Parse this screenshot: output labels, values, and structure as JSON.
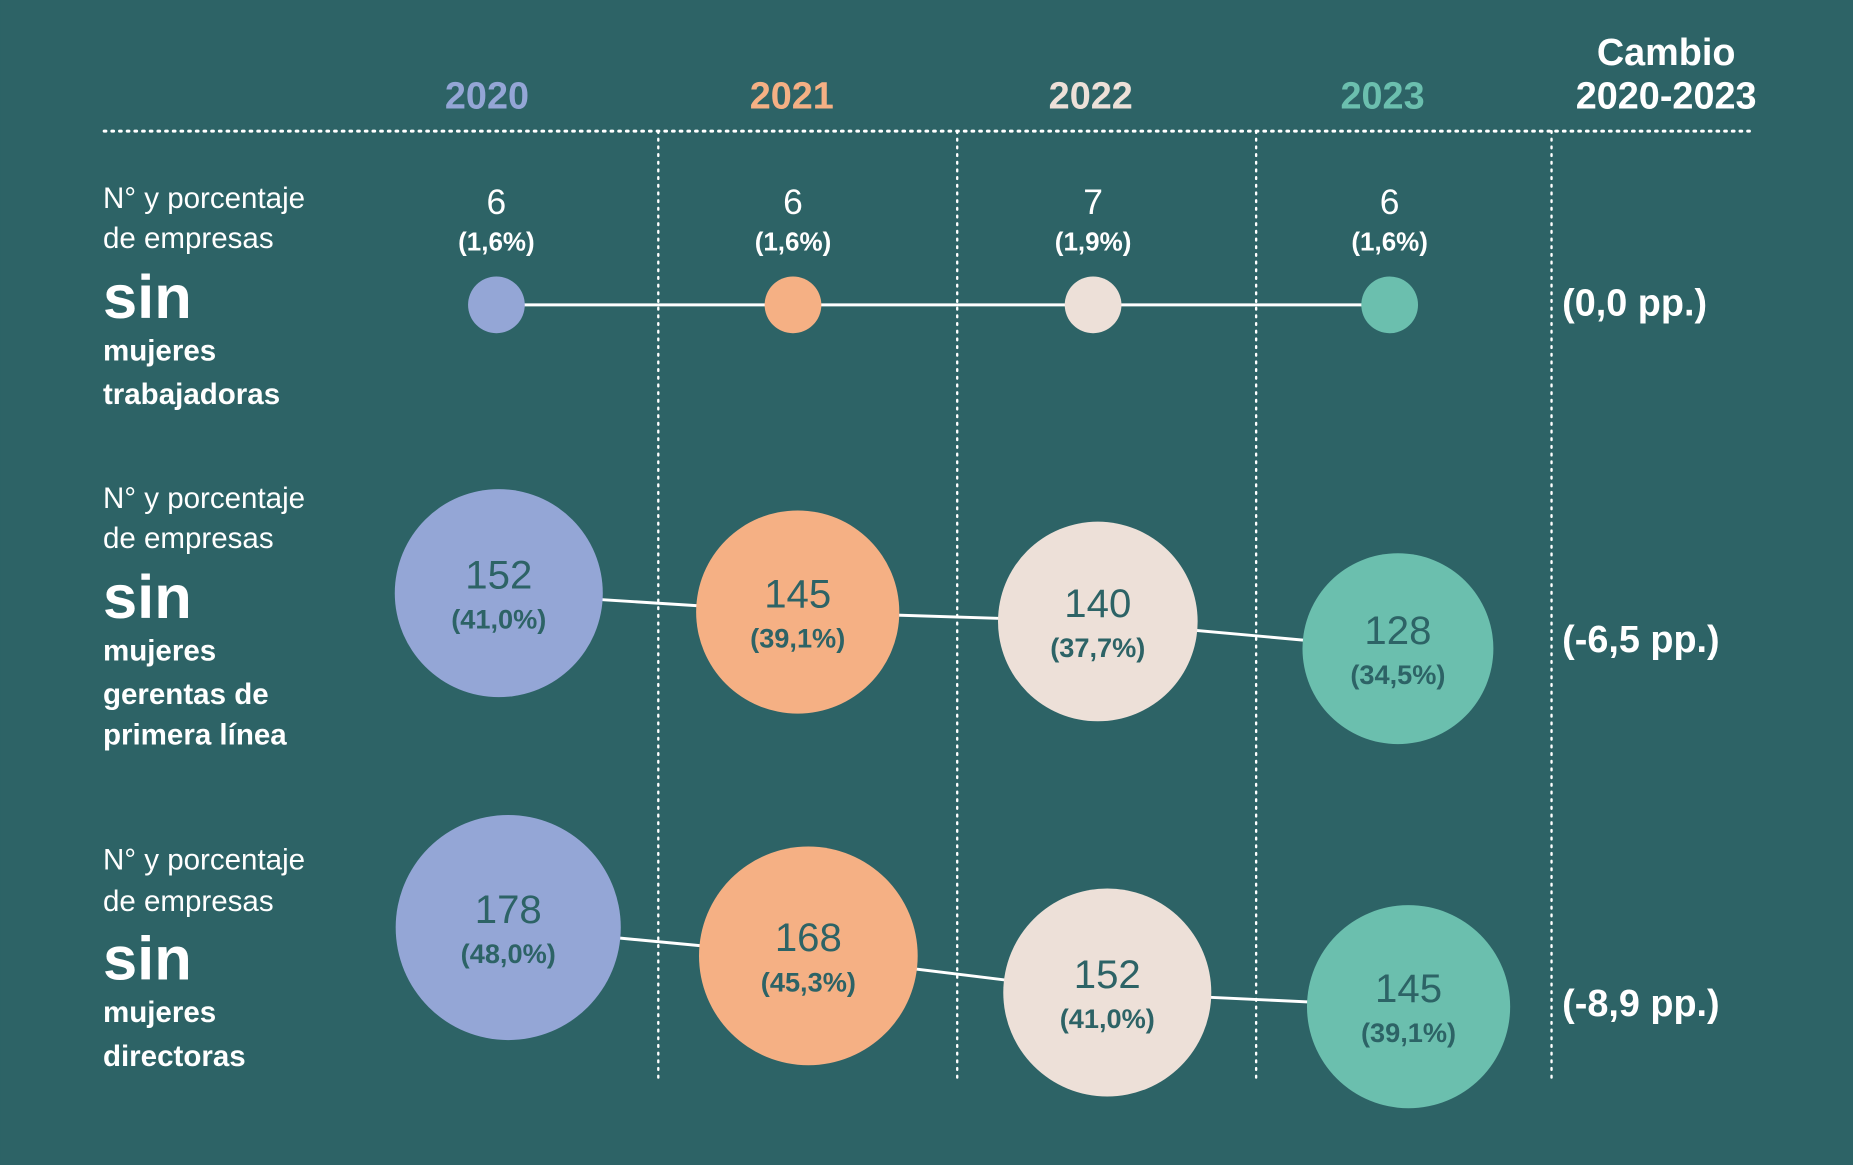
{
  "chart_data": {
    "type": "bubble-timeline",
    "years": [
      "2020",
      "2021",
      "2022",
      "2023"
    ],
    "year_colors": [
      "#94a6d6",
      "#f5b084",
      "#ede0d8",
      "#6bbfae"
    ],
    "background": "#2d6366",
    "change_header": [
      "Cambio",
      "2020-2023"
    ],
    "rows": [
      {
        "label": [
          "N° y porcentaje",
          "de empresas",
          "sin",
          "mujeres",
          "trabajadoras"
        ],
        "values": [
          6,
          6,
          7,
          6
        ],
        "percents": [
          "(1,6%)",
          "(1,6%)",
          "(1,9%)",
          "(1,6%)"
        ],
        "change": "(0,0 pp.)"
      },
      {
        "label": [
          "N° y porcentaje",
          "de empresas",
          "sin",
          "mujeres",
          "gerentas de",
          "primera línea"
        ],
        "values": [
          152,
          145,
          140,
          128
        ],
        "percents": [
          "(41,0%)",
          "(39,1%)",
          "(37,7%)",
          "(34,5%)"
        ],
        "change": "(-6,5 pp.)"
      },
      {
        "label": [
          "N° y porcentaje",
          "de empresas",
          "sin",
          "mujeres",
          "directoras"
        ],
        "values": [
          178,
          168,
          152,
          145
        ],
        "percents": [
          "(48,0%)",
          "(45,3%)",
          "(41,0%)",
          "(39,1%)"
        ],
        "change": "(-8,9 pp.)"
      }
    ]
  }
}
